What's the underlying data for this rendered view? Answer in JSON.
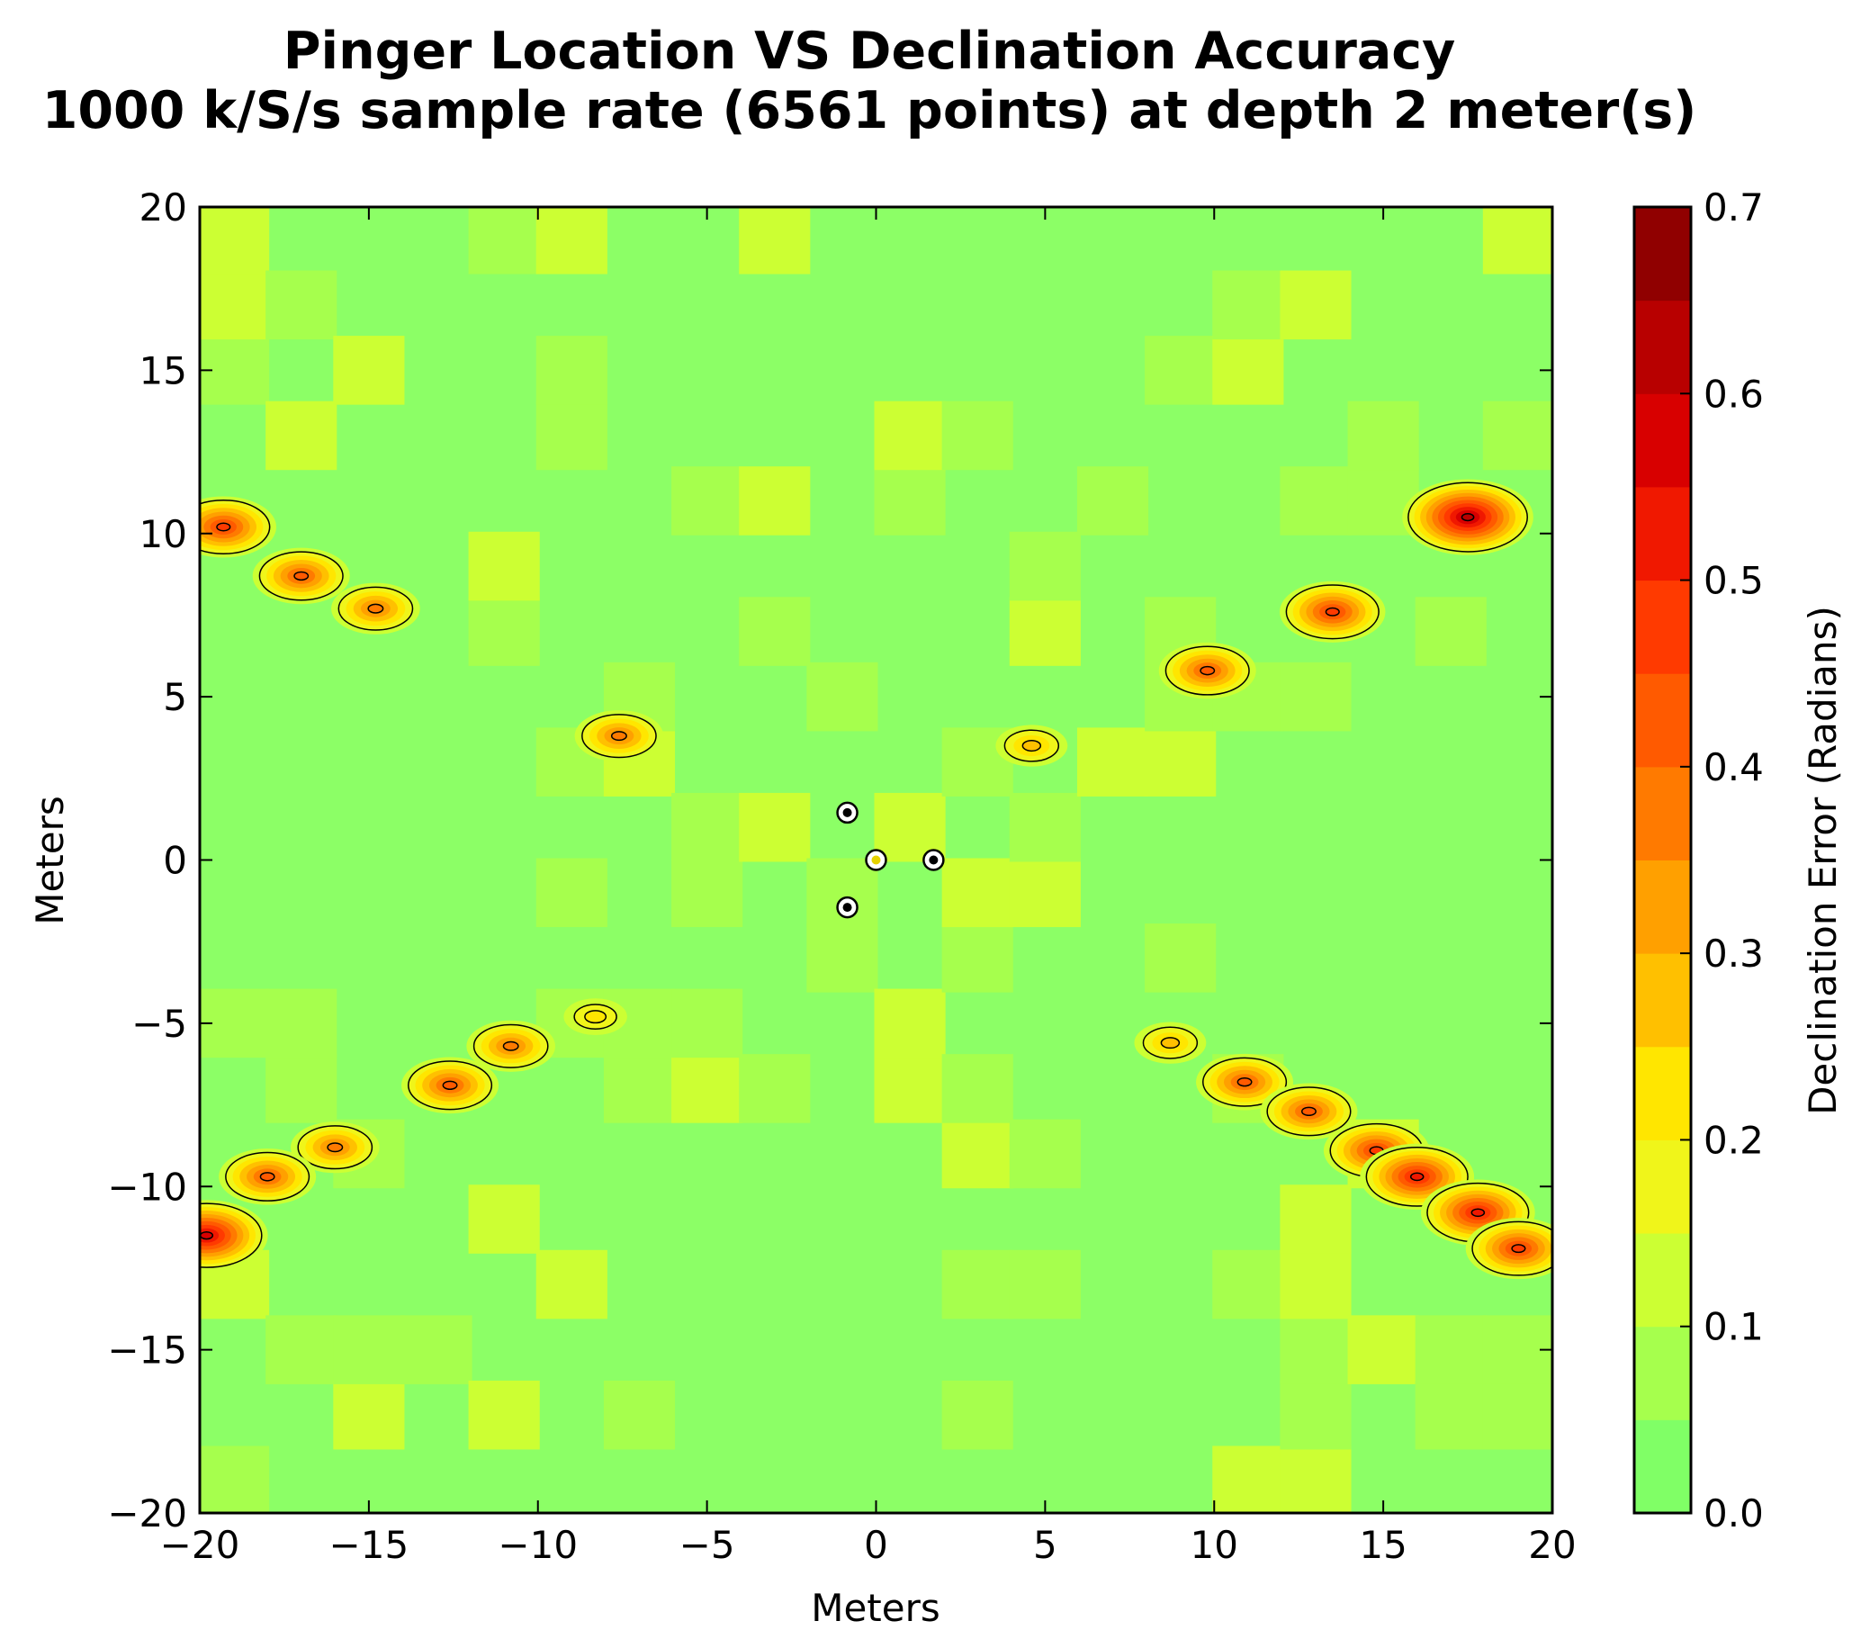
{
  "chart_data": {
    "type": "heatmap",
    "subtype": "filled-contour",
    "title": "Pinger Location VS Declination Accuracy",
    "subtitle": "1000 k/S/s sample rate (6561 points) at depth 2 meter(s)",
    "xlabel": "Meters",
    "ylabel": "Meters",
    "xlim": [
      -20,
      20
    ],
    "ylim": [
      -20,
      20
    ],
    "x_ticks": [
      "−20",
      "−15",
      "−10",
      "−5",
      "0",
      "5",
      "10",
      "15",
      "20"
    ],
    "y_ticks": [
      "20",
      "15",
      "10",
      "5",
      "0",
      "−5",
      "−10",
      "−15",
      "−20"
    ],
    "x_tick_values": [
      -20,
      -15,
      -10,
      -5,
      0,
      5,
      10,
      15,
      20
    ],
    "y_tick_values": [
      20,
      15,
      10,
      5,
      0,
      -5,
      -10,
      -15,
      -20
    ],
    "colorbar": {
      "label": "Declination Error (Radians)",
      "range": [
        0.0,
        0.7
      ],
      "ticks": [
        "0.7",
        "0.6",
        "0.5",
        "0.4",
        "0.3",
        "0.2",
        "0.1",
        "0.0"
      ],
      "tick_values": [
        0.7,
        0.6,
        0.5,
        0.4,
        0.3,
        0.2,
        0.1,
        0.0
      ],
      "levels": [
        0.0,
        0.05,
        0.1,
        0.15,
        0.2,
        0.25,
        0.3,
        0.35,
        0.4,
        0.45,
        0.5,
        0.55,
        0.6,
        0.65,
        0.7
      ],
      "colors": [
        "#80ff66",
        "#a6ff4d",
        "#ccff33",
        "#f0f51a",
        "#ffe600",
        "#ffc000",
        "#ffa000",
        "#ff7a00",
        "#ff5a00",
        "#ff3a00",
        "#f01800",
        "#d80000",
        "#b80000",
        "#900000"
      ]
    },
    "base_level_color": "#8cff66",
    "secondary_level_color": "#ccff33",
    "hydrophones": [
      {
        "x": -0.85,
        "y": 1.45
      },
      {
        "x": 0.0,
        "y": 0.0
      },
      {
        "x": 1.7,
        "y": 0.0
      },
      {
        "x": -0.85,
        "y": -1.45
      }
    ],
    "high_error_regions": [
      {
        "x": -19.3,
        "y": 10.2,
        "peak": 0.45
      },
      {
        "x": -17.0,
        "y": 8.7,
        "peak": 0.4
      },
      {
        "x": -14.8,
        "y": 7.7,
        "peak": 0.35
      },
      {
        "x": -7.6,
        "y": 3.8,
        "peak": 0.35
      },
      {
        "x": 13.5,
        "y": 7.6,
        "peak": 0.45
      },
      {
        "x": 17.5,
        "y": 10.5,
        "peak": 0.6
      },
      {
        "x": 9.8,
        "y": 5.8,
        "peak": 0.4
      },
      {
        "x": 4.6,
        "y": 3.5,
        "peak": 0.25
      },
      {
        "x": -10.8,
        "y": -5.7,
        "peak": 0.35
      },
      {
        "x": -12.6,
        "y": -6.9,
        "peak": 0.4
      },
      {
        "x": -16.0,
        "y": -8.8,
        "peak": 0.35
      },
      {
        "x": -18.0,
        "y": -9.7,
        "peak": 0.4
      },
      {
        "x": -19.8,
        "y": -11.5,
        "peak": 0.55
      },
      {
        "x": -8.3,
        "y": -4.8,
        "peak": 0.2
      },
      {
        "x": 8.7,
        "y": -5.6,
        "peak": 0.25
      },
      {
        "x": 10.9,
        "y": -6.8,
        "peak": 0.4
      },
      {
        "x": 12.8,
        "y": -7.7,
        "peak": 0.4
      },
      {
        "x": 14.8,
        "y": -8.9,
        "peak": 0.45
      },
      {
        "x": 16.0,
        "y": -9.7,
        "peak": 0.5
      },
      {
        "x": 17.8,
        "y": -10.8,
        "peak": 0.5
      },
      {
        "x": 19.0,
        "y": -11.9,
        "peak": 0.45
      }
    ]
  }
}
